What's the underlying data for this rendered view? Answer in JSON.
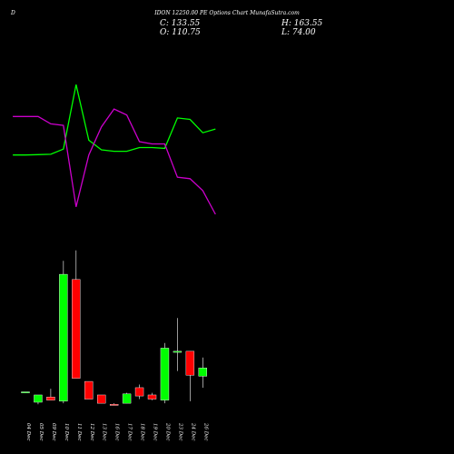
{
  "header": {
    "letter": "D",
    "title": "IDON 12250.00 PE Options  Chart MunafaSutra.com",
    "close": "C: 133.55",
    "open": "O: 110.75",
    "high": "H: 163.55",
    "low": "L: 74.00"
  },
  "colors": {
    "up": "#00ff00",
    "down": "#ff0000",
    "line_green": "#00ff00",
    "line_magenta": "#cc00cc",
    "background": "#000000"
  },
  "chart_data": {
    "type": "candlestick",
    "categories": [
      "04 Dec",
      "05 Dec",
      "09 Dec",
      "10 Dec",
      "11 Dec",
      "12 Dec",
      "13 Dec",
      "16 Dec",
      "17 Dec",
      "18 Dec",
      "19 Dec",
      "20 Dec",
      "23 Dec",
      "24 Dec",
      "26 Dec"
    ],
    "candles": [
      {
        "open": 12,
        "close": 12,
        "high": 12,
        "low": 12,
        "dir": "up"
      },
      {
        "open": 2,
        "close": 9,
        "high": 9,
        "low": 0,
        "dir": "up"
      },
      {
        "open": 7,
        "close": 4,
        "high": 15,
        "low": 4,
        "dir": "down"
      },
      {
        "open": 3,
        "close": 125,
        "high": 138,
        "low": 1,
        "dir": "up"
      },
      {
        "open": 120,
        "close": 25,
        "high": 148,
        "low": 25,
        "dir": "down"
      },
      {
        "open": 22,
        "close": 5,
        "high": 22,
        "low": 5,
        "dir": "down"
      },
      {
        "open": 9,
        "close": 1,
        "high": 9,
        "low": 1,
        "dir": "down"
      },
      {
        "open": 0,
        "close": -1,
        "high": 1,
        "low": -1,
        "dir": "down"
      },
      {
        "open": 1,
        "close": 10,
        "high": 11,
        "low": 1,
        "dir": "up"
      },
      {
        "open": 16,
        "close": 8,
        "high": 19,
        "low": 5,
        "dir": "down"
      },
      {
        "open": 9,
        "close": 5,
        "high": 11,
        "low": 4,
        "dir": "down"
      },
      {
        "open": 4,
        "close": 54,
        "high": 59,
        "low": 1,
        "dir": "up"
      },
      {
        "open": 51,
        "close": 51,
        "high": 83,
        "low": 32,
        "dir": "up"
      },
      {
        "open": 51,
        "close": 28,
        "high": 51,
        "low": 3,
        "dir": "down"
      },
      {
        "open": 27,
        "close": 35,
        "high": 45,
        "low": 16,
        "dir": "up"
      }
    ],
    "candle_ylim": [
      -5,
      160
    ],
    "lines": [
      {
        "color": "green",
        "x": [
          -1,
          0,
          1,
          2,
          3,
          4,
          5,
          6,
          7,
          8,
          9,
          10,
          11,
          12,
          13,
          14,
          15
        ],
        "values": [
          40,
          40,
          40.5,
          41,
          48,
          135,
          60,
          47,
          45,
          45,
          50,
          50,
          49,
          90,
          88,
          70,
          75
        ]
      },
      {
        "color": "magenta",
        "x": [
          -1,
          0,
          1,
          2,
          3,
          4,
          5,
          6,
          7,
          8,
          9,
          10,
          11,
          12,
          13,
          14,
          15
        ],
        "values": [
          92,
          92,
          92,
          82,
          80,
          -30,
          40,
          78,
          102,
          94,
          58,
          55,
          55,
          10,
          8,
          -8,
          -40
        ]
      }
    ],
    "line_ylim": [
      -40,
      145
    ]
  }
}
